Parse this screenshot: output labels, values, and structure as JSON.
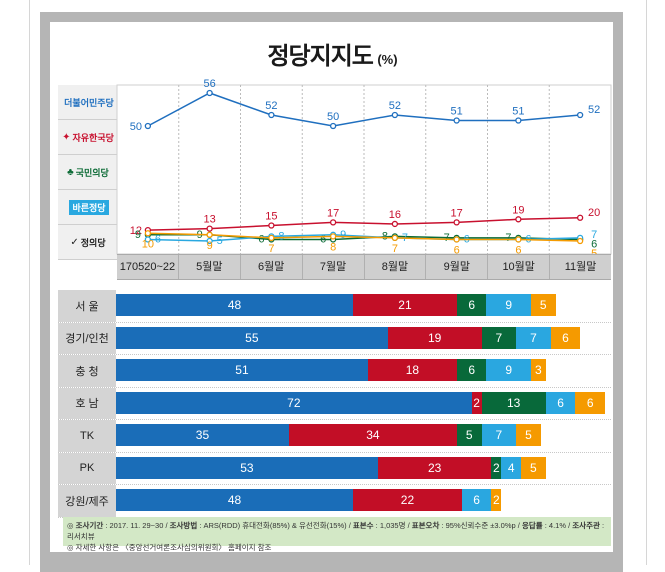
{
  "title": "정당지지도",
  "title_unit": "(%)",
  "colors": {
    "minjoo": "#1f6fbf",
    "jayu": "#c8102e",
    "gukmin": "#0c6b36",
    "bareun": "#29a8e0",
    "jeongui": "#f59b00"
  },
  "legend": [
    {
      "name": "더불어민주당",
      "color": "#1f6fbf",
      "icon": "minjoo-logo-icon"
    },
    {
      "name": "자유한국당",
      "color": "#c8102e",
      "icon": "torch-icon"
    },
    {
      "name": "국민의당",
      "color": "#0c6b36",
      "icon": "people-icon"
    },
    {
      "name": "바른정당",
      "color": "#29a8e0",
      "icon": "bareun-logo-icon"
    },
    {
      "name": "정의당",
      "color": "#222222",
      "icon": "check-icon"
    }
  ],
  "chart_data": [
    {
      "type": "line",
      "title": "정당지지도 (%)",
      "x": [
        "170520~22",
        "5월말",
        "6월말",
        "7월말",
        "8월말",
        "9월말",
        "10월말",
        "11월말"
      ],
      "series": [
        {
          "name": "더불어민주당",
          "color": "#1f6fbf",
          "values": [
            50,
            56,
            52,
            50,
            52,
            51,
            51,
            52
          ]
        },
        {
          "name": "자유한국당",
          "color": "#c8102e",
          "values": [
            12,
            13,
            15,
            17,
            16,
            17,
            19,
            20
          ]
        },
        {
          "name": "국민의당",
          "color": "#0c6b36",
          "values": [
            9,
            9,
            6,
            6,
            8,
            7,
            7,
            6
          ]
        },
        {
          "name": "바른정당",
          "color": "#29a8e0",
          "values": [
            6,
            5,
            8,
            9,
            7,
            6,
            6,
            7
          ]
        },
        {
          "name": "정의당",
          "color": "#f59b00",
          "values": [
            10,
            9,
            7,
            8,
            7,
            6,
            6,
            5
          ]
        }
      ],
      "xlabel": "",
      "ylabel": "",
      "grid": true,
      "legend": "left"
    },
    {
      "type": "bar",
      "orientation": "horizontal-stacked",
      "categories": [
        "서 울",
        "경기/인천",
        "충 청",
        "호 남",
        "TK",
        "PK",
        "강원/제주"
      ],
      "series": [
        {
          "name": "더불어민주당",
          "color": "#1a6db8",
          "values": [
            48,
            55,
            51,
            72,
            35,
            53,
            48
          ]
        },
        {
          "name": "자유한국당",
          "color": "#c20e26",
          "values": [
            21,
            19,
            18,
            2,
            34,
            23,
            22
          ]
        },
        {
          "name": "국민의당",
          "color": "#08693a",
          "values": [
            6,
            7,
            6,
            13,
            5,
            2,
            0
          ]
        },
        {
          "name": "바른정당",
          "color": "#2aa7e0",
          "values": [
            9,
            7,
            9,
            6,
            7,
            4,
            6
          ]
        },
        {
          "name": "정의당",
          "color": "#f59a00",
          "values": [
            5,
            6,
            3,
            6,
            5,
            5,
            2
          ]
        }
      ]
    }
  ],
  "note": {
    "line1_parts": [
      {
        "t": "◎ ",
        "b": false
      },
      {
        "t": "조사기간",
        "b": true
      },
      {
        "t": " : 2017. 11. 29~30 / ",
        "b": false
      },
      {
        "t": "조사방법",
        "b": true
      },
      {
        "t": " : ARS(RDD) 휴대전화(85%) & 유선전화(15%) / ",
        "b": false
      },
      {
        "t": "표본수",
        "b": true
      },
      {
        "t": " : 1,035명 / ",
        "b": false
      },
      {
        "t": "표본오차",
        "b": true
      },
      {
        "t": " : 95%신뢰수준 ±3.0%p / ",
        "b": false
      },
      {
        "t": "응답률",
        "b": true
      },
      {
        "t": " : 4.1% / ",
        "b": false
      },
      {
        "t": "조사주관",
        "b": true
      },
      {
        "t": " : 리서치뷰",
        "b": false
      }
    ],
    "line2": "◎ 자세한 사항은 〈중앙선거여론조사심의위원회〉 홈페이지 참조"
  }
}
